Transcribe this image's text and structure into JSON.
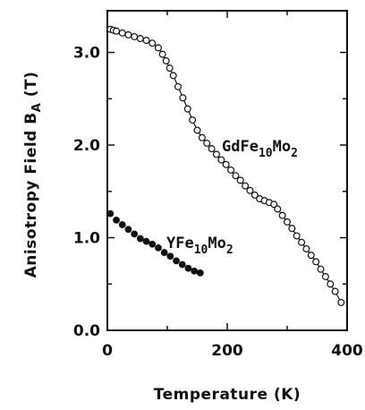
{
  "chart_data": {
    "type": "scatter",
    "xlabel": "Temperature (K)",
    "ylabel": "Anisotropy Field B",
    "ylabel_sub": "A",
    "ylabel_unit": " (T)",
    "xlim": [
      0,
      400
    ],
    "ylim": [
      0,
      3.45
    ],
    "xticks": [
      0,
      200,
      400
    ],
    "xtick_labels": [
      "0",
      "200",
      "400"
    ],
    "yticks": [
      0.0,
      1.0,
      2.0,
      3.0
    ],
    "ytick_labels": [
      "0.0",
      "1.0",
      "2.0",
      "3.0"
    ],
    "series": [
      {
        "label_main": "GdFe",
        "label_sub1": "10",
        "label_mid": "Mo",
        "label_sub2": "2",
        "marker": "open-circle",
        "line": true,
        "x": [
          5,
          10,
          15,
          25,
          35,
          45,
          55,
          65,
          75,
          85,
          92,
          98,
          104,
          110,
          118,
          126,
          134,
          142,
          150,
          158,
          166,
          174,
          182,
          190,
          198,
          206,
          214,
          222,
          230,
          238,
          246,
          254,
          262,
          270,
          278,
          284,
          292,
          300,
          308,
          316,
          324,
          332,
          340,
          348,
          356,
          364,
          372,
          380,
          390
        ],
        "y": [
          3.25,
          3.24,
          3.23,
          3.21,
          3.19,
          3.17,
          3.15,
          3.13,
          3.1,
          3.05,
          2.98,
          2.91,
          2.83,
          2.75,
          2.63,
          2.51,
          2.39,
          2.27,
          2.16,
          2.08,
          2.02,
          1.96,
          1.9,
          1.84,
          1.79,
          1.73,
          1.67,
          1.62,
          1.56,
          1.51,
          1.46,
          1.42,
          1.4,
          1.38,
          1.36,
          1.31,
          1.24,
          1.17,
          1.1,
          1.02,
          0.95,
          0.88,
          0.81,
          0.74,
          0.66,
          0.58,
          0.5,
          0.42,
          0.3
        ]
      },
      {
        "label_main": "YFe",
        "label_sub1": "10",
        "label_mid": "Mo",
        "label_sub2": "2",
        "marker": "filled-circle",
        "line": false,
        "x": [
          5,
          15,
          25,
          35,
          45,
          55,
          65,
          75,
          85,
          95,
          105,
          115,
          125,
          135,
          145,
          155
        ],
        "y": [
          1.26,
          1.19,
          1.14,
          1.09,
          1.04,
          0.99,
          0.96,
          0.93,
          0.89,
          0.84,
          0.8,
          0.75,
          0.71,
          0.67,
          0.64,
          0.62
        ]
      }
    ]
  }
}
